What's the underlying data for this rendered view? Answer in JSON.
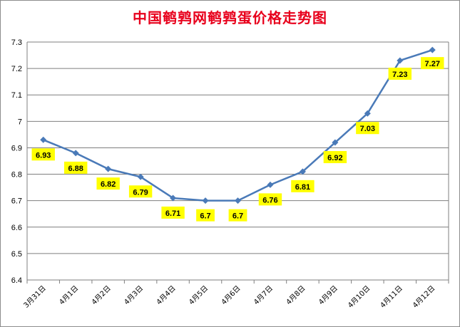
{
  "chart_data": {
    "type": "line",
    "title": "中国鹌鹑网鹌鹑蛋价格走势图",
    "categories": [
      "3月31日",
      "4月1日",
      "4月2日",
      "4月3日",
      "4月4日",
      "4月5日",
      "4月6日",
      "4月7日",
      "4月8日",
      "4月9日",
      "4月10日",
      "4月11日",
      "4月12日"
    ],
    "series": [
      {
        "values": [
          6.93,
          6.88,
          6.82,
          6.79,
          6.71,
          6.7,
          6.7,
          6.76,
          6.81,
          6.92,
          7.03,
          7.23,
          7.27
        ]
      }
    ],
    "data_labels": [
      "6.93",
      "6.88",
      "6.82",
      "6.79",
      "6.71",
      "6.7",
      "6.7",
      "6.76",
      "6.81",
      "6.92",
      "7.03",
      "7.23",
      "7.27"
    ],
    "yticks": [
      "6.4",
      "6.5",
      "6.6",
      "6.7",
      "6.8",
      "6.9",
      "7",
      "7.1",
      "7.2",
      "7.3"
    ],
    "ylim": [
      6.4,
      7.3
    ],
    "grid": true,
    "legend": "none",
    "colors": {
      "line": "#4a7ab8",
      "marker": "#4a7ab8",
      "label_bg": "#ffff00",
      "title": "#e8001c",
      "grid": "#7f7f7f"
    }
  }
}
